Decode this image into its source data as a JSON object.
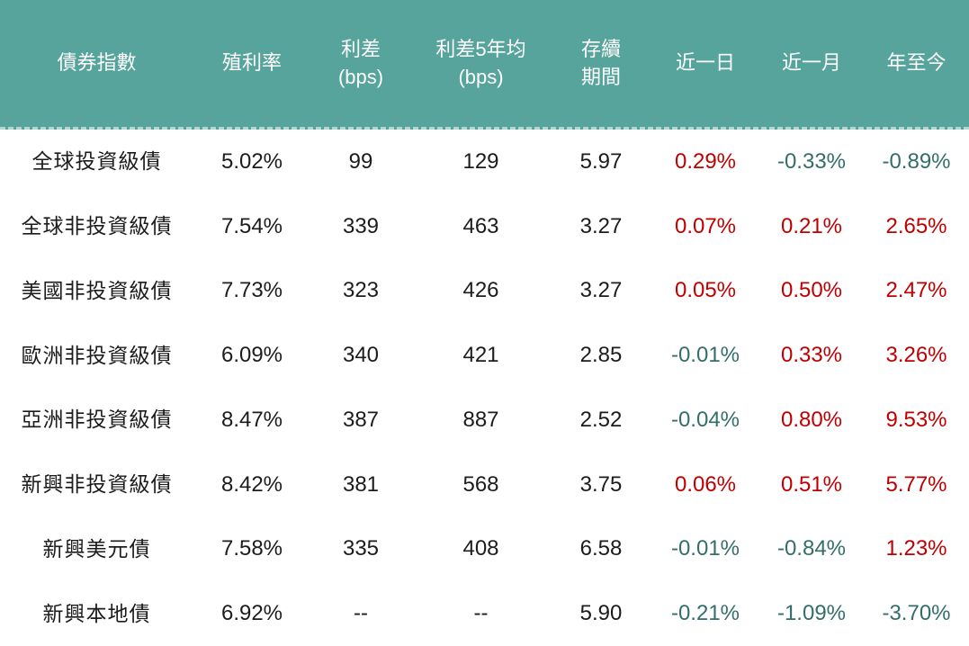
{
  "colors": {
    "header_bg": "#56A49C",
    "header_text": "#FFFFFF",
    "body_text": "#1C1C1C",
    "positive_change": "#C00000",
    "negative_change": "#336E69"
  },
  "chart_data": {
    "type": "table",
    "columns": [
      {
        "label": "債券指數"
      },
      {
        "label": "殖利率"
      },
      {
        "label": "利差\n(bps)"
      },
      {
        "label": "利差5年均\n(bps)"
      },
      {
        "label": "存續\n期間"
      },
      {
        "label": "近一日"
      },
      {
        "label": "近一月"
      },
      {
        "label": "年至今"
      }
    ],
    "rows": [
      {
        "name": "全球投資級債",
        "yield": "5.02%",
        "spread": "99",
        "spread_5y_avg": "129",
        "duration": "5.97",
        "day": "0.29%",
        "month": "-0.33%",
        "ytd": "-0.89%"
      },
      {
        "name": "全球非投資級債",
        "yield": "7.54%",
        "spread": "339",
        "spread_5y_avg": "463",
        "duration": "3.27",
        "day": "0.07%",
        "month": "0.21%",
        "ytd": "2.65%"
      },
      {
        "name": "美國非投資級債",
        "yield": "7.73%",
        "spread": "323",
        "spread_5y_avg": "426",
        "duration": "3.27",
        "day": "0.05%",
        "month": "0.50%",
        "ytd": "2.47%"
      },
      {
        "name": "歐洲非投資級債",
        "yield": "6.09%",
        "spread": "340",
        "spread_5y_avg": "421",
        "duration": "2.85",
        "day": "-0.01%",
        "month": "0.33%",
        "ytd": "3.26%"
      },
      {
        "name": "亞洲非投資級債",
        "yield": "8.47%",
        "spread": "387",
        "spread_5y_avg": "887",
        "duration": "2.52",
        "day": "-0.04%",
        "month": "0.80%",
        "ytd": "9.53%"
      },
      {
        "name": "新興非投資級債",
        "yield": "8.42%",
        "spread": "381",
        "spread_5y_avg": "568",
        "duration": "3.75",
        "day": "0.06%",
        "month": "0.51%",
        "ytd": "5.77%"
      },
      {
        "name": "新興美元債",
        "yield": "7.58%",
        "spread": "335",
        "spread_5y_avg": "408",
        "duration": "6.58",
        "day": "-0.01%",
        "month": "-0.84%",
        "ytd": "1.23%"
      },
      {
        "name": "新興本地債",
        "yield": "6.92%",
        "spread": "--",
        "spread_5y_avg": "--",
        "duration": "5.90",
        "day": "-0.21%",
        "month": "-1.09%",
        "ytd": "-3.70%"
      }
    ]
  }
}
